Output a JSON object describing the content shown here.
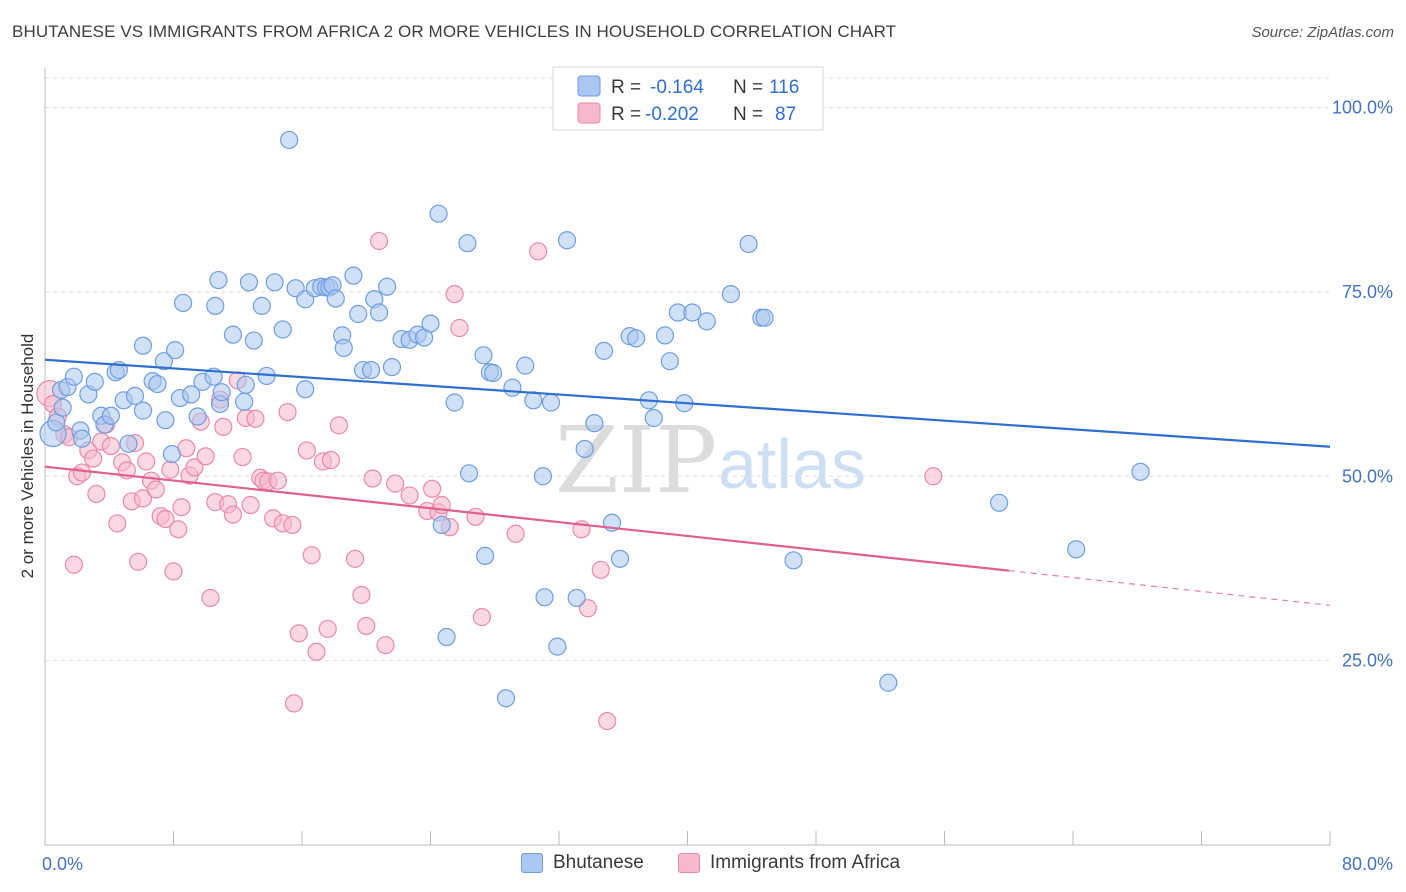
{
  "title": "BHUTANESE VS IMMIGRANTS FROM AFRICA 2 OR MORE VEHICLES IN HOUSEHOLD CORRELATION CHART",
  "source": "Source: ZipAtlas.com",
  "watermark": {
    "zip": "ZIP",
    "atlas": "atlas"
  },
  "colors": {
    "blue_fill": "#a9c7f0",
    "blue_stroke": "#6f9ee0",
    "blue_line": "#2e6fcf",
    "pink_fill": "#f6b8cb",
    "pink_stroke": "#ea8aa8",
    "pink_line": "#e0628c",
    "tick_label": "#4472c4",
    "grid": "#dddddd"
  },
  "legend": {
    "rows": [
      {
        "r_label": "R =",
        "r_value": "-0.164",
        "n_label": "N =",
        "n_value": "116"
      },
      {
        "r_label": "R =",
        "r_value": "-0.202",
        "n_label": "N =",
        "n_value": "87"
      }
    ]
  },
  "bottom_legend": {
    "series1": "Bhutanese",
    "series2": "Immigrants from Africa"
  },
  "chart_data": {
    "type": "scatter",
    "title": "BHUTANESE VS IMMIGRANTS FROM AFRICA 2 OR MORE VEHICLES IN HOUSEHOLD CORRELATION CHART",
    "xlabel": "",
    "ylabel": "2 or more Vehicles in Household",
    "xlim": [
      0,
      80
    ],
    "ylim": [
      0,
      104
    ],
    "x_tick_labels": [
      "0.0%",
      "80.0%"
    ],
    "y_ticks": [
      25,
      50,
      75,
      100
    ],
    "y_tick_labels": [
      "25.0%",
      "50.0%",
      "75.0%",
      "100.0%"
    ],
    "grid": true,
    "legend_position": "top-center",
    "series": [
      {
        "name": "Bhutanese",
        "R": -0.164,
        "N": 116,
        "trend": {
          "x": [
            0,
            80
          ],
          "y": [
            65.8,
            54.0
          ]
        },
        "points": [
          [
            0.5,
            55.8
          ],
          [
            0.7,
            57.3
          ],
          [
            1.0,
            61.7
          ],
          [
            1.1,
            59.3
          ],
          [
            1.4,
            62.1
          ],
          [
            1.8,
            63.5
          ],
          [
            2.2,
            56.2
          ],
          [
            2.3,
            55.1
          ],
          [
            2.7,
            61.1
          ],
          [
            3.1,
            62.8
          ],
          [
            3.5,
            58.2
          ],
          [
            3.7,
            57.0
          ],
          [
            4.1,
            58.2
          ],
          [
            4.4,
            64.1
          ],
          [
            4.6,
            64.4
          ],
          [
            4.9,
            60.3
          ],
          [
            5.2,
            54.4
          ],
          [
            5.6,
            60.9
          ],
          [
            6.1,
            58.9
          ],
          [
            6.1,
            67.7
          ],
          [
            6.7,
            62.9
          ],
          [
            7.0,
            62.5
          ],
          [
            7.4,
            65.6
          ],
          [
            7.5,
            57.6
          ],
          [
            7.9,
            53.0
          ],
          [
            8.1,
            67.1
          ],
          [
            8.4,
            60.6
          ],
          [
            8.6,
            73.5
          ],
          [
            9.1,
            61.1
          ],
          [
            9.5,
            58.1
          ],
          [
            9.8,
            62.8
          ],
          [
            10.5,
            63.5
          ],
          [
            10.6,
            73.1
          ],
          [
            10.8,
            76.6
          ],
          [
            10.9,
            59.8
          ],
          [
            11.0,
            61.4
          ],
          [
            11.7,
            69.2
          ],
          [
            12.4,
            60.1
          ],
          [
            12.5,
            62.4
          ],
          [
            12.7,
            76.3
          ],
          [
            13.0,
            68.4
          ],
          [
            13.5,
            73.1
          ],
          [
            13.8,
            63.6
          ],
          [
            14.3,
            76.3
          ],
          [
            14.8,
            69.9
          ],
          [
            15.2,
            95.6
          ],
          [
            15.6,
            75.5
          ],
          [
            16.2,
            74.0
          ],
          [
            16.2,
            61.8
          ],
          [
            16.8,
            75.5
          ],
          [
            17.2,
            75.7
          ],
          [
            17.5,
            75.6
          ],
          [
            17.7,
            75.6
          ],
          [
            17.9,
            75.9
          ],
          [
            18.1,
            74.1
          ],
          [
            18.5,
            69.1
          ],
          [
            18.6,
            67.4
          ],
          [
            19.2,
            77.2
          ],
          [
            19.5,
            72.0
          ],
          [
            19.8,
            64.4
          ],
          [
            20.3,
            64.4
          ],
          [
            20.5,
            74.0
          ],
          [
            20.8,
            72.2
          ],
          [
            21.3,
            75.7
          ],
          [
            21.6,
            64.8
          ],
          [
            22.2,
            68.6
          ],
          [
            22.7,
            68.5
          ],
          [
            23.2,
            69.2
          ],
          [
            23.6,
            68.8
          ],
          [
            24.0,
            70.7
          ],
          [
            24.5,
            85.6
          ],
          [
            24.7,
            43.4
          ],
          [
            25.0,
            28.2
          ],
          [
            25.5,
            60.0
          ],
          [
            26.3,
            81.6
          ],
          [
            26.4,
            50.4
          ],
          [
            27.3,
            66.4
          ],
          [
            27.4,
            39.2
          ],
          [
            27.7,
            64.1
          ],
          [
            27.9,
            64.0
          ],
          [
            28.7,
            19.9
          ],
          [
            29.1,
            62.0
          ],
          [
            29.9,
            65.0
          ],
          [
            30.4,
            60.3
          ],
          [
            31.0,
            50.0
          ],
          [
            31.1,
            33.6
          ],
          [
            31.5,
            60.0
          ],
          [
            31.9,
            26.9
          ],
          [
            32.5,
            82.0
          ],
          [
            33.1,
            33.5
          ],
          [
            33.6,
            53.7
          ],
          [
            34.2,
            57.2
          ],
          [
            34.8,
            67.0
          ],
          [
            35.3,
            43.7
          ],
          [
            35.8,
            38.8
          ],
          [
            36.4,
            69.0
          ],
          [
            36.8,
            68.7
          ],
          [
            37.6,
            60.3
          ],
          [
            37.9,
            57.9
          ],
          [
            38.6,
            69.1
          ],
          [
            38.9,
            65.6
          ],
          [
            39.4,
            72.2
          ],
          [
            39.8,
            59.9
          ],
          [
            40.3,
            72.2
          ],
          [
            41.2,
            71.0
          ],
          [
            42.7,
            74.7
          ],
          [
            43.8,
            81.5
          ],
          [
            44.6,
            71.5
          ],
          [
            44.8,
            71.5
          ],
          [
            46.6,
            38.6
          ],
          [
            52.5,
            22.0
          ],
          [
            59.4,
            46.4
          ],
          [
            64.2,
            40.1
          ],
          [
            68.2,
            50.6
          ],
          [
            43.0,
            100.0
          ]
        ]
      },
      {
        "name": "Immigrants from Africa",
        "R": -0.202,
        "N": 87,
        "trend": {
          "x": [
            0,
            60
          ],
          "y": [
            51.3,
            37.2
          ]
        },
        "trend_dashed": {
          "x": [
            60,
            80
          ],
          "y": [
            37.2,
            32.5
          ]
        },
        "points": [
          [
            0.3,
            61.2
          ],
          [
            0.5,
            59.8
          ],
          [
            0.8,
            58.1
          ],
          [
            1.2,
            55.7
          ],
          [
            1.5,
            55.3
          ],
          [
            1.8,
            38.0
          ],
          [
            2.0,
            50.0
          ],
          [
            2.3,
            50.5
          ],
          [
            2.7,
            53.5
          ],
          [
            3.0,
            52.4
          ],
          [
            3.2,
            47.6
          ],
          [
            3.5,
            54.7
          ],
          [
            3.8,
            57.0
          ],
          [
            4.1,
            54.1
          ],
          [
            4.5,
            43.6
          ],
          [
            4.8,
            51.9
          ],
          [
            5.1,
            50.8
          ],
          [
            5.4,
            46.6
          ],
          [
            5.6,
            54.5
          ],
          [
            5.8,
            38.4
          ],
          [
            6.1,
            47.0
          ],
          [
            6.3,
            52.0
          ],
          [
            6.6,
            49.4
          ],
          [
            6.9,
            48.2
          ],
          [
            7.2,
            44.6
          ],
          [
            7.5,
            44.2
          ],
          [
            7.8,
            50.9
          ],
          [
            8.0,
            37.1
          ],
          [
            8.3,
            42.8
          ],
          [
            8.5,
            45.8
          ],
          [
            8.8,
            53.8
          ],
          [
            9.0,
            50.1
          ],
          [
            9.3,
            51.2
          ],
          [
            9.7,
            57.4
          ],
          [
            10.0,
            52.7
          ],
          [
            10.3,
            33.5
          ],
          [
            10.6,
            46.5
          ],
          [
            10.9,
            60.4
          ],
          [
            11.1,
            56.7
          ],
          [
            11.4,
            46.2
          ],
          [
            11.7,
            44.8
          ],
          [
            12.0,
            63.0
          ],
          [
            12.3,
            52.6
          ],
          [
            12.5,
            57.9
          ],
          [
            12.8,
            46.1
          ],
          [
            13.1,
            57.8
          ],
          [
            13.4,
            49.8
          ],
          [
            13.6,
            49.4
          ],
          [
            13.9,
            49.3
          ],
          [
            14.2,
            44.3
          ],
          [
            14.5,
            49.4
          ],
          [
            14.8,
            43.6
          ],
          [
            15.1,
            58.7
          ],
          [
            15.4,
            43.4
          ],
          [
            15.8,
            28.7
          ],
          [
            16.3,
            53.5
          ],
          [
            16.6,
            39.3
          ],
          [
            16.9,
            26.2
          ],
          [
            17.3,
            52.0
          ],
          [
            17.6,
            29.3
          ],
          [
            17.8,
            52.2
          ],
          [
            18.3,
            56.9
          ],
          [
            19.3,
            38.8
          ],
          [
            19.7,
            33.9
          ],
          [
            20.0,
            29.7
          ],
          [
            20.4,
            49.7
          ],
          [
            20.8,
            81.9
          ],
          [
            21.2,
            27.1
          ],
          [
            21.8,
            49.0
          ],
          [
            22.7,
            47.4
          ],
          [
            23.8,
            45.3
          ],
          [
            24.1,
            48.3
          ],
          [
            24.5,
            45.1
          ],
          [
            24.7,
            46.1
          ],
          [
            25.2,
            43.1
          ],
          [
            25.5,
            74.7
          ],
          [
            25.8,
            70.1
          ],
          [
            26.8,
            44.5
          ],
          [
            27.2,
            30.9
          ],
          [
            29.3,
            42.2
          ],
          [
            30.7,
            80.5
          ],
          [
            33.4,
            42.8
          ],
          [
            33.8,
            32.1
          ],
          [
            34.6,
            37.3
          ],
          [
            35.0,
            16.8
          ],
          [
            55.3,
            50.0
          ],
          [
            15.5,
            19.2
          ]
        ]
      }
    ]
  }
}
